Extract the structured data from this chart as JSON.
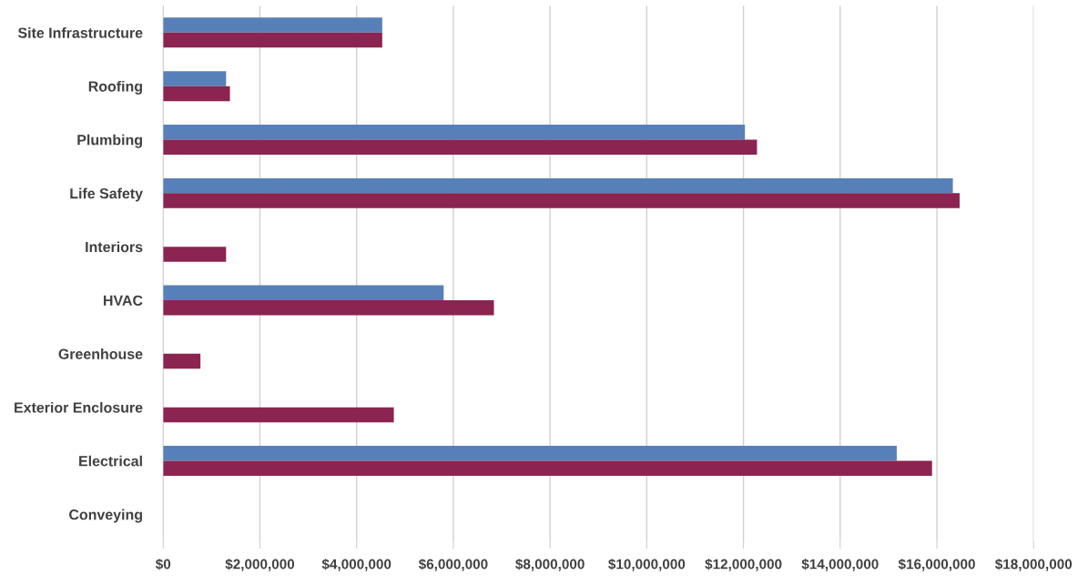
{
  "chart_data": {
    "type": "bar",
    "orientation": "horizontal",
    "categories": [
      "Site Infrastructure",
      "Roofing",
      "Plumbing",
      "Life Safety",
      "Interiors",
      "HVAC",
      "Greenhouse",
      "Exterior Enclosure",
      "Electrical",
      "Conveying"
    ],
    "series": [
      {
        "color": "#5880b8",
        "values": [
          4530000,
          1300000,
          12030000,
          16330000,
          0,
          5800000,
          0,
          0,
          15170000,
          0
        ]
      },
      {
        "color": "#8b2450",
        "values": [
          4530000,
          1380000,
          12280000,
          16470000,
          1300000,
          6840000,
          770000,
          4770000,
          15900000,
          0
        ]
      }
    ],
    "xlim": [
      0,
      18000000
    ],
    "xticks": [
      {
        "value": 0,
        "label": "$0"
      },
      {
        "value": 2000000,
        "label": "$2,000,000"
      },
      {
        "value": 4000000,
        "label": "$4,000,000"
      },
      {
        "value": 6000000,
        "label": "$6,000,000"
      },
      {
        "value": 8000000,
        "label": "$8,000,000"
      },
      {
        "value": 10000000,
        "label": "$10,000,000"
      },
      {
        "value": 12000000,
        "label": "$12,000,000"
      },
      {
        "value": 14000000,
        "label": "$14,000,000"
      },
      {
        "value": 16000000,
        "label": "$16,000,000"
      },
      {
        "value": 18000000,
        "label": "$18,000,000"
      }
    ],
    "grid": "x",
    "legend": false
  }
}
